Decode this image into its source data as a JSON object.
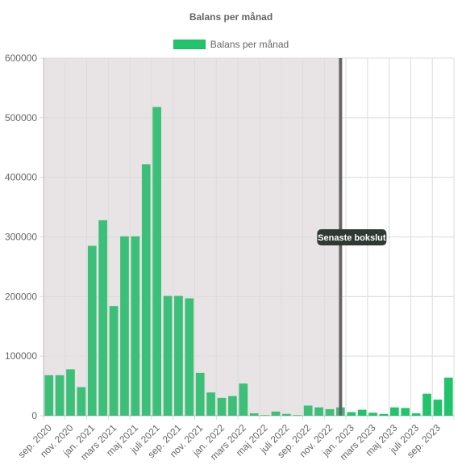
{
  "colors": {
    "bar": "#3cbf78",
    "bar_highlight": "#21c46b",
    "shaded_region": "#e8e4e5",
    "marker_line": "#666666",
    "grid": "#dcdcdc"
  },
  "chart_data": {
    "type": "bar",
    "title": "Balans per månad",
    "legend": {
      "position": "top",
      "items": [
        "Balans per månad"
      ]
    },
    "ylim": [
      0,
      600000
    ],
    "y_ticks": [
      0,
      100000,
      200000,
      300000,
      400000,
      500000,
      600000
    ],
    "grid": true,
    "categories": [
      "sep. 2020",
      "okt. 2020",
      "nov. 2020",
      "dec. 2020",
      "jan. 2021",
      "feb. 2021",
      "mars 2021",
      "apr. 2021",
      "maj 2021",
      "juni 2021",
      "juli 2021",
      "aug. 2021",
      "sep. 2021",
      "okt. 2021",
      "nov. 2021",
      "dec. 2021",
      "jan. 2022",
      "feb. 2022",
      "mars 2022",
      "apr. 2022",
      "maj 2022",
      "juni 2022",
      "juli 2022",
      "aug. 2022",
      "sep. 2022",
      "okt. 2022",
      "nov. 2022",
      "dec. 2022",
      "jan. 2023",
      "feb. 2023",
      "mars 2023",
      "apr. 2023",
      "maj 2023",
      "juni 2023",
      "juli 2023",
      "aug. 2023",
      "sep. 2023",
      "okt. 2023"
    ],
    "x_tick_labels": [
      "sep. 2020",
      "nov. 2020",
      "jan. 2021",
      "mars 2021",
      "maj 2021",
      "juli 2021",
      "sep. 2021",
      "nov. 2021",
      "jan. 2022",
      "mars 2022",
      "maj 2022",
      "juli 2022",
      "sep. 2022",
      "nov. 2022",
      "jan. 2023",
      "mars 2023",
      "maj 2023",
      "juli 2023",
      "sep. 2023"
    ],
    "series": [
      {
        "name": "Balans per månad",
        "values": [
          68000,
          68000,
          78000,
          48000,
          285000,
          328000,
          184000,
          301000,
          301000,
          422000,
          518000,
          201000,
          201000,
          197000,
          72000,
          39000,
          30000,
          33000,
          54000,
          4000,
          1000,
          7000,
          3000,
          1000,
          17000,
          14000,
          11000,
          14000,
          6000,
          10000,
          5000,
          3000,
          14000,
          13000,
          4000,
          37000,
          27000,
          64000
        ]
      }
    ],
    "shaded_until_category": "dec. 2022",
    "marker": {
      "category": "dec. 2022",
      "label": "Senaste bokslut"
    }
  }
}
